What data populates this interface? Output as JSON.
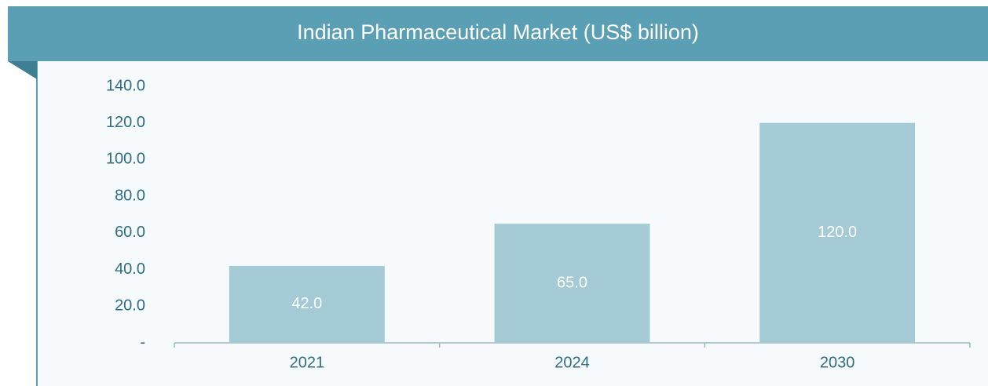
{
  "chart_data": {
    "type": "bar",
    "title": "Indian Pharmaceutical Market (US$ billion)",
    "categories": [
      "2021",
      "2024",
      "2030"
    ],
    "values": [
      42,
      65,
      120
    ],
    "value_labels": [
      "42.0",
      "65.0",
      "120.0"
    ],
    "color": "#a4cad5",
    "ylim": [
      0,
      140
    ],
    "yticks": [
      {
        "value": 0,
        "label": "-"
      },
      {
        "value": 20,
        "label": "20.0"
      },
      {
        "value": 40,
        "label": "40.0"
      },
      {
        "value": 60,
        "label": "60.0"
      },
      {
        "value": 80,
        "label": "80.0"
      },
      {
        "value": 100,
        "label": "100.0"
      },
      {
        "value": 120,
        "label": "120.0"
      },
      {
        "value": 140,
        "label": "140.0"
      }
    ],
    "grid": false
  }
}
